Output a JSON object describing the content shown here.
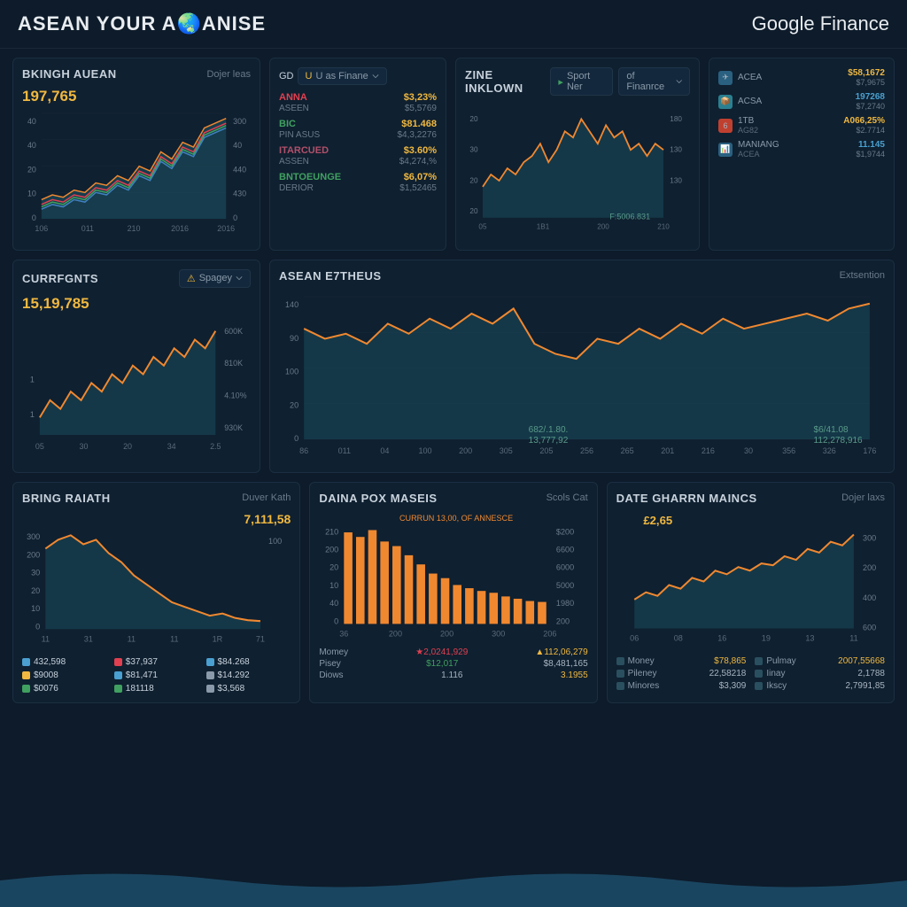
{
  "header": {
    "title": "ASEAN YOUR A🌏ANISE",
    "brand": "Google Finance"
  },
  "colors": {
    "bg": "#0d1b2a",
    "panel": "#0f2030",
    "border": "#1b2f42",
    "text": "#a8b4c0",
    "title": "#c8d2dc",
    "sub": "#6a7a8a",
    "accent": "#f0b840",
    "orange": "#f08830",
    "teal": "#2a8090",
    "teal_fill": "#1a5060",
    "red": "#e04050",
    "green": "#40a060",
    "blue": "#4080c0",
    "grid": "#1a2a3a"
  },
  "panel1": {
    "title": "BKINGH AUEAN",
    "subtitle": "Dojer leas",
    "value": "197,765",
    "ylabels_left": [
      "40",
      "40",
      "20",
      "10",
      "0"
    ],
    "ylabels_right": [
      "300",
      "40",
      "440",
      "430",
      "0"
    ],
    "xlabels": [
      "106",
      "011",
      "210",
      "2016",
      "2016"
    ],
    "series": [
      {
        "color": "#f08830",
        "data": [
          8,
          10,
          9,
          12,
          11,
          15,
          14,
          18,
          16,
          22,
          20,
          28,
          25,
          32,
          30,
          38,
          40,
          42
        ]
      },
      {
        "color": "#e04050",
        "data": [
          6,
          8,
          7,
          10,
          9,
          13,
          12,
          16,
          14,
          20,
          18,
          26,
          23,
          30,
          28,
          36,
          38,
          40
        ]
      },
      {
        "color": "#40a060",
        "data": [
          5,
          7,
          6,
          9,
          8,
          12,
          11,
          15,
          13,
          19,
          17,
          25,
          22,
          29,
          27,
          35,
          37,
          39
        ]
      },
      {
        "color": "#4080c0",
        "data": [
          4,
          6,
          5,
          8,
          7,
          11,
          10,
          14,
          12,
          18,
          16,
          24,
          21,
          28,
          26,
          34,
          36,
          38
        ]
      }
    ],
    "fill_color": "#1a5060"
  },
  "panel2": {
    "header_items": [
      "GD",
      "U as Finane"
    ],
    "tickers": [
      {
        "sym": "ANNA",
        "sub": "ASEEN",
        "color": "#e04050",
        "val": "$3,23%",
        "val2": "$5,5769"
      },
      {
        "sym": "BIC",
        "sub": "PIN ASUS",
        "color": "#40a060",
        "val": "$81.468",
        "val2": "$4,3,2276"
      },
      {
        "sym": "ITARCUED",
        "sub": "ASSEN",
        "color": "#b0506a",
        "val": "$3.60%",
        "val2": "$4,274,%"
      },
      {
        "sym": "BNTOEUNGE",
        "sub": "DERIOR",
        "color": "#40a060",
        "val": "$6,07%",
        "val2": "$1,52465"
      }
    ]
  },
  "panel3": {
    "title": "ZINE INKLOWN",
    "dropdown1": "Sport Ner",
    "dropdown2": "of Finanrce",
    "ylabels_left": [
      "20",
      "30",
      "20",
      "20"
    ],
    "ylabels_right": [
      "180",
      "130",
      "130"
    ],
    "xlabels": [
      "05",
      "1B1",
      "200",
      "210"
    ],
    "label_text": "F:5006.831",
    "line_color": "#f08830",
    "fill_color": "#1a5060",
    "data": [
      10,
      14,
      12,
      16,
      14,
      18,
      20,
      24,
      18,
      22,
      28,
      26,
      32,
      28,
      24,
      30,
      26,
      28,
      22,
      24,
      20,
      24,
      22
    ]
  },
  "panel4": {
    "items": [
      {
        "icon": "✈",
        "icon_bg": "#2a6080",
        "name": "ACEA",
        "sub": "",
        "val": "$58,1672",
        "val2": "$7,9675",
        "val_color": "#f0b840"
      },
      {
        "icon": "📦",
        "icon_bg": "#2a8090",
        "name": "ACSA",
        "sub": "",
        "val": "197268",
        "val2": "$7,2740",
        "val_color": "#4aa0d0"
      },
      {
        "icon": "6",
        "icon_bg": "#c04030",
        "name": "1TB",
        "sub": "AG82",
        "val": "A066,25%",
        "val2": "$2.7714",
        "val_color": "#f0b840"
      },
      {
        "icon": "📊",
        "icon_bg": "#2a6080",
        "name": "MANIANG",
        "sub": "ACEA",
        "val": "11.145",
        "val2": "$1,9744",
        "val_color": "#4aa0d0"
      }
    ]
  },
  "panel5": {
    "title": "CURRFGNTS",
    "dropdown": "Spagey",
    "value": "15,19,785",
    "ylabels_right": [
      "600K",
      "810K",
      "4.10%",
      "930K"
    ],
    "ylabels_left": [
      "1",
      "1"
    ],
    "xlabels": [
      "05",
      "30",
      "20",
      "34",
      "2.5"
    ],
    "line_color": "#f08830",
    "fill_color": "#1a5060",
    "data": [
      2,
      4,
      3,
      5,
      4,
      6,
      5,
      7,
      6,
      8,
      7,
      9,
      8,
      10,
      9,
      11,
      10,
      12
    ]
  },
  "panel6": {
    "title": "ASEAN E7THEUS",
    "subtitle": "Extsention",
    "ylabels_left": [
      "140",
      "90",
      "100",
      "20",
      "0"
    ],
    "xlabels": [
      "86",
      "011",
      "04",
      "100",
      "200",
      "305",
      "205",
      "256",
      "265",
      "201",
      "216",
      "30",
      "356",
      "326",
      "176"
    ],
    "label1": "682/.1.80.",
    "label1b": "13,777,92",
    "label2": "$6/41.08",
    "label2b": "112,278,916",
    "line_color": "#f08830",
    "fill_color": "#1a5060",
    "data": [
      110,
      100,
      105,
      95,
      115,
      105,
      120,
      110,
      125,
      115,
      130,
      95,
      85,
      80,
      100,
      95,
      110,
      100,
      115,
      105,
      120,
      110,
      115,
      120,
      125,
      118,
      130,
      135
    ]
  },
  "panel7": {
    "title": "BRING RAIATH",
    "subtitle": "Duver Kath",
    "value": "7,111,58",
    "ylabels_left": [
      "300",
      "200",
      "30",
      "20",
      "10",
      "0"
    ],
    "ylabels_right": [
      "100"
    ],
    "xlabels": [
      "11",
      "31",
      "11",
      "11",
      "1R",
      "71"
    ],
    "line_color": "#f08830",
    "fill_color": "#1a5060",
    "data": [
      180,
      200,
      210,
      190,
      200,
      170,
      150,
      120,
      100,
      80,
      60,
      50,
      40,
      30,
      35,
      25,
      20,
      18
    ],
    "legend": [
      {
        "color": "#4aa0d0",
        "val": "432,598"
      },
      {
        "color": "#e04050",
        "val": "$37,937"
      },
      {
        "color": "#4aa0d0",
        "val": "$84.268"
      },
      {
        "color": "#f0b840",
        "val": "$9008"
      },
      {
        "color": "#4aa0d0",
        "val": "$81,471"
      },
      {
        "color": "#8a9aaa",
        "val": "$14.292"
      },
      {
        "color": "#40a060",
        "val": "$0076"
      },
      {
        "color": "#40a060",
        "val": "181118"
      },
      {
        "color": "#8a9aaa",
        "val": "$3,568"
      }
    ]
  },
  "panel8": {
    "title": "DAINA POX MASEIS",
    "subtitle": "Scols Cat",
    "header_line": "CURRUN 13,00, OF ANNESCE",
    "ylabels_left": [
      "210",
      "200",
      "20",
      "10",
      "40",
      "0"
    ],
    "ylabels_right": [
      "$200",
      "6600",
      "6000",
      "5000",
      "1980",
      "200"
    ],
    "xlabels": [
      "36",
      "200",
      "200",
      "300",
      "206"
    ],
    "line_color": "#f08830",
    "data": [
      200,
      190,
      205,
      180,
      170,
      150,
      130,
      110,
      100,
      85,
      78,
      72,
      68,
      60,
      55,
      50,
      48
    ],
    "stats": [
      {
        "label": "Momey",
        "val1": "2,0241,929",
        "val1_icon": "★",
        "val1_color": "#e04050",
        "val2": "112,06,279",
        "val2_icon": "▲",
        "val2_color": "#f0b840"
      },
      {
        "label": "Pisey",
        "val1": "$12,017",
        "val1_color": "#40a060",
        "val2": "$8,481,165",
        "val2_color": "#a8b4c0"
      },
      {
        "label": "Diows",
        "val1": "1.116",
        "val1_color": "#a8b4c0",
        "val2": "3.1955",
        "val2_color": "#f0b840"
      }
    ]
  },
  "panel9": {
    "title": "DATE GHARRN MAINCS",
    "subtitle": "Dojer laxs",
    "value": "£2,65",
    "ylabels_right": [
      "300",
      "200",
      "400",
      "600"
    ],
    "xlabels": [
      "06",
      "08",
      "16",
      "19",
      "13",
      "11"
    ],
    "line_color": "#f08830",
    "fill_color": "#1a5060",
    "data": [
      80,
      100,
      90,
      120,
      110,
      140,
      130,
      160,
      150,
      170,
      160,
      180,
      175,
      200,
      190,
      220,
      210,
      240,
      230,
      260
    ],
    "stats": [
      {
        "label": "Money",
        "val1": "$78,865",
        "val1_color": "#f0b840",
        "label2": "Pulmay",
        "val2": "2007,55668",
        "val2_color": "#f0b840"
      },
      {
        "label": "Pileney",
        "val1": "22,58218",
        "val1_color": "#a8b4c0",
        "label2": "Iinay",
        "val2": "2,1788",
        "val2_color": "#a8b4c0"
      },
      {
        "label": "Minores",
        "val1": "$3,309",
        "val1_color": "#a8b4c0",
        "label2": "Ikscy",
        "val2": "2,7991,85",
        "val2_color": "#a8b4c0"
      }
    ]
  },
  "wave_color": "#1a4560"
}
